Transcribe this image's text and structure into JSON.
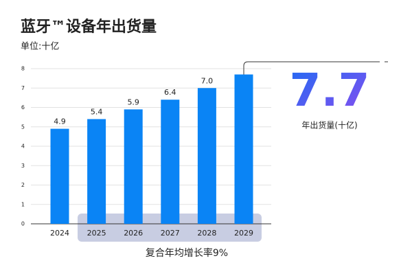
{
  "chart_data": {
    "type": "bar",
    "title": "蓝牙™设备年出货量",
    "subtitle": "单位:十亿",
    "categories": [
      "2024",
      "2025",
      "2026",
      "2027",
      "2028",
      "2029"
    ],
    "values": [
      4.9,
      5.4,
      5.9,
      6.4,
      7.0,
      7.7
    ],
    "value_labels": [
      "4.9",
      "5.4",
      "5.9",
      "6.4",
      "7.0",
      "7.7"
    ],
    "color": "#0a84f5",
    "ylim": [
      0,
      8
    ],
    "yticks": [
      0,
      1,
      2,
      3,
      4,
      5,
      6,
      7,
      8
    ],
    "grid": true,
    "callout_label": "年出货量(十亿)",
    "annotation": "复合年均增长率9%"
  }
}
